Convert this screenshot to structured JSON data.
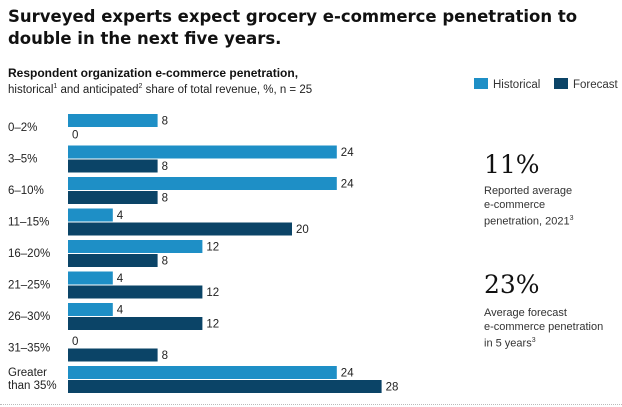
{
  "title": "Surveyed experts expect grocery e-commerce penetration to double in the next five years.",
  "subtitle": {
    "heading": "Respondent organization e-commerce penetration,",
    "desc_pre": "historical",
    "desc_sup1": "1",
    "desc_mid": " and anticipated",
    "desc_sup2": "2",
    "desc_post": " share of total revenue, %, n = 25"
  },
  "colors": {
    "historical": "#1e8fc6",
    "forecast": "#0b4467"
  },
  "chart_data": {
    "type": "bar",
    "orientation": "horizontal",
    "categories": [
      "0–2%",
      "3–5%",
      "6–10%",
      "11–15%",
      "16–20%",
      "21–25%",
      "26–30%",
      "31–35%",
      "Greater than 35%"
    ],
    "series": [
      {
        "name": "Historical",
        "values": [
          8,
          24,
          24,
          4,
          12,
          4,
          4,
          0,
          24
        ]
      },
      {
        "name": "Forecast",
        "values": [
          0,
          8,
          8,
          20,
          8,
          12,
          12,
          8,
          28
        ]
      }
    ],
    "legend": "top-right"
  },
  "stats": [
    {
      "value": "11%",
      "lines": [
        "Reported average",
        "e-commerce",
        "penetration, 2021"
      ],
      "sup": "3"
    },
    {
      "value": "23%",
      "lines": [
        "Average forecast",
        "e-commerce penetration",
        "in 5 years"
      ],
      "sup": "3"
    }
  ]
}
